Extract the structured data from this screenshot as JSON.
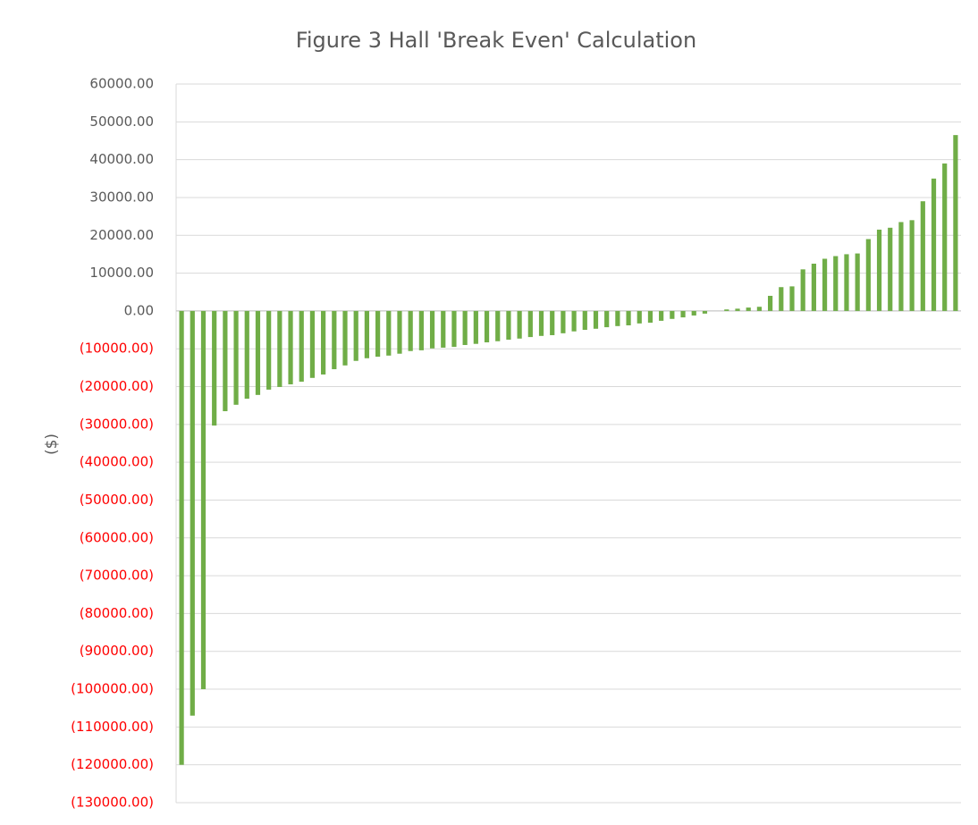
{
  "chart_data": {
    "type": "bar",
    "title": "Figure 3 Hall 'Break Even' Calculation",
    "y_label": "($)",
    "categories": [
      null,
      null,
      null,
      null,
      null,
      null,
      null,
      null,
      null,
      null,
      null,
      null,
      null,
      null,
      null,
      null,
      null,
      null,
      null,
      null,
      null,
      null,
      null,
      null,
      null,
      null,
      null,
      null,
      null,
      null,
      null,
      null,
      null,
      null,
      null,
      null,
      null,
      null,
      null,
      null,
      null,
      null,
      null,
      null,
      null,
      null,
      null,
      null,
      null,
      null,
      null,
      null,
      null,
      null,
      null,
      null,
      null,
      null,
      null,
      null,
      null,
      null,
      null,
      null,
      null,
      null,
      null,
      null,
      null,
      null,
      null,
      null
    ],
    "values": [
      -120000,
      -107000,
      -100000,
      -30300,
      -26500,
      -24800,
      -23200,
      -22200,
      -20800,
      -20100,
      -19400,
      -18700,
      -17700,
      -16800,
      -15400,
      -14400,
      -13200,
      -12500,
      -12100,
      -11800,
      -11300,
      -10600,
      -10400,
      -9900,
      -9700,
      -9500,
      -9000,
      -8700,
      -8300,
      -8000,
      -7600,
      -7300,
      -6900,
      -6600,
      -6400,
      -5900,
      -5400,
      -5000,
      -4700,
      -4300,
      -4000,
      -3800,
      -3300,
      -3100,
      -2600,
      -2100,
      -1700,
      -1200,
      -700,
      0,
      400,
      600,
      900,
      1100,
      4000,
      6300,
      6500,
      11000,
      12500,
      13800,
      14500,
      15000,
      15200,
      19000,
      21500,
      22000,
      23500,
      24000,
      29000,
      35000,
      39000,
      46500
    ],
    "color": "#70ad47",
    "negative_tick_color": "#ff0000",
    "ylim": [
      -130000,
      60000
    ],
    "yticks": [
      {
        "value": 60000,
        "label": "60000.00"
      },
      {
        "value": 50000,
        "label": "50000.00"
      },
      {
        "value": 40000,
        "label": "40000.00"
      },
      {
        "value": 30000,
        "label": "30000.00"
      },
      {
        "value": 20000,
        "label": "20000.00"
      },
      {
        "value": 10000,
        "label": "10000.00"
      },
      {
        "value": 0,
        "label": "0.00"
      },
      {
        "value": -10000,
        "label": "(10000.00)"
      },
      {
        "value": -20000,
        "label": "(20000.00)"
      },
      {
        "value": -30000,
        "label": "(30000.00)"
      },
      {
        "value": -40000,
        "label": "(40000.00)"
      },
      {
        "value": -50000,
        "label": "(50000.00)"
      },
      {
        "value": -60000,
        "label": "(60000.00)"
      },
      {
        "value": -70000,
        "label": "(70000.00)"
      },
      {
        "value": -80000,
        "label": "(80000.00)"
      },
      {
        "value": -90000,
        "label": "(90000.00)"
      },
      {
        "value": -100000,
        "label": "(100000.00)"
      },
      {
        "value": -110000,
        "label": "(110000.00)"
      },
      {
        "value": -120000,
        "label": "(120000.00)"
      },
      {
        "value": -130000,
        "label": "(130000.00)"
      }
    ],
    "grid": true
  }
}
